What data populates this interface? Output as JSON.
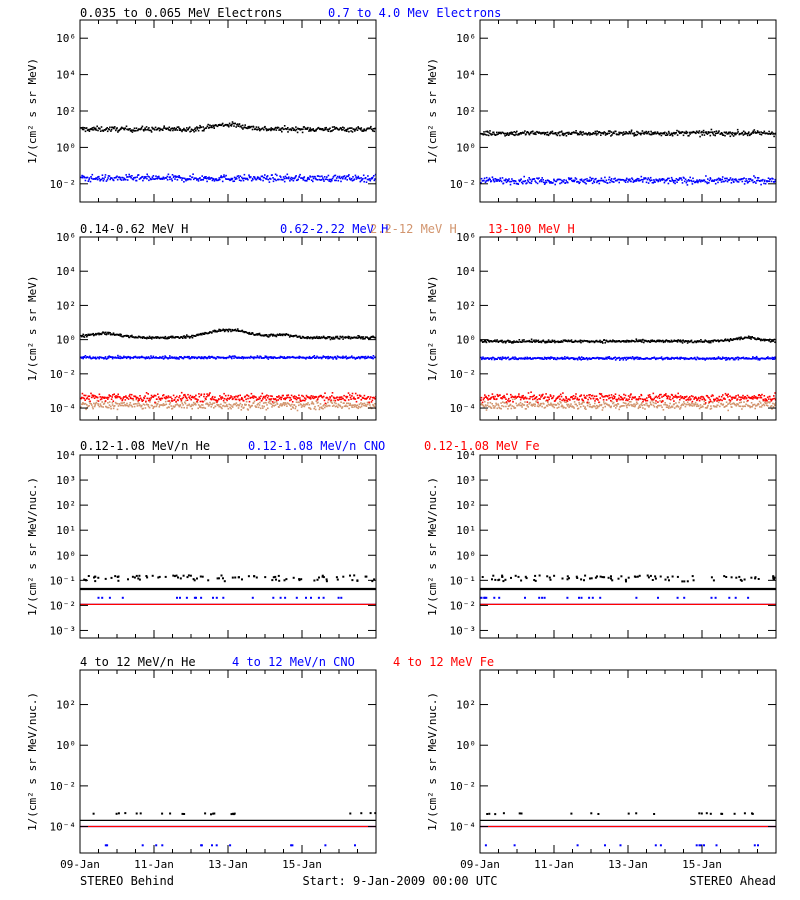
{
  "page": {
    "footer_left": "STEREO Behind",
    "footer_center": "Start:  9-Jan-2009 00:00 UTC",
    "footer_right": "STEREO Ahead"
  },
  "x_ticks": [
    "09-Jan",
    "11-Jan",
    "13-Jan",
    "15-Jan"
  ],
  "rows": [
    {
      "titles": [
        {
          "text": "0.035 to 0.065 MeV Electrons",
          "color": "#000000"
        },
        {
          "text": "0.7 to 4.0 Mev Electrons",
          "color": "#0000ff"
        }
      ],
      "ylabel": "1/(cm² s sr MeV)",
      "yticks": [
        {
          "exp": 6,
          "label": "10⁶"
        },
        {
          "exp": 4,
          "label": "10⁴"
        },
        {
          "exp": 2,
          "label": "10²"
        },
        {
          "exp": 0,
          "label": "10⁰"
        },
        {
          "exp": -2,
          "label": "10⁻²"
        }
      ]
    },
    {
      "titles": [
        {
          "text": "0.14-0.62 MeV H",
          "color": "#000000"
        },
        {
          "text": "0.62-2.22 MeV H",
          "color": "#0000ff"
        },
        {
          "text": "2.2-12 MeV H",
          "color": "#d2956e"
        },
        {
          "text": "13-100 MeV H",
          "color": "#ff0000"
        }
      ],
      "ylabel": "1/(cm² s sr MeV)",
      "yticks": [
        {
          "exp": 6,
          "label": "10⁶"
        },
        {
          "exp": 4,
          "label": "10⁴"
        },
        {
          "exp": 2,
          "label": "10²"
        },
        {
          "exp": 0,
          "label": "10⁰"
        },
        {
          "exp": -2,
          "label": "10⁻²"
        },
        {
          "exp": -4,
          "label": "10⁻⁴"
        }
      ]
    },
    {
      "titles": [
        {
          "text": "0.12-1.08 MeV/n He",
          "color": "#000000"
        },
        {
          "text": "0.12-1.08 MeV/n CNO",
          "color": "#0000ff"
        },
        {
          "text": "0.12-1.08 MeV Fe",
          "color": "#ff0000"
        }
      ],
      "ylabel": "1/(cm² s sr MeV/nuc.)",
      "yticks": [
        {
          "exp": 4,
          "label": "10⁴"
        },
        {
          "exp": 3,
          "label": "10³"
        },
        {
          "exp": 2,
          "label": "10²"
        },
        {
          "exp": 1,
          "label": "10¹"
        },
        {
          "exp": 0,
          "label": "10⁰"
        },
        {
          "exp": -1,
          "label": "10⁻¹"
        },
        {
          "exp": -2,
          "label": "10⁻²"
        },
        {
          "exp": -3,
          "label": "10⁻³"
        }
      ]
    },
    {
      "titles": [
        {
          "text": "4 to 12 MeV/n He",
          "color": "#000000"
        },
        {
          "text": "4 to 12 MeV/n CNO",
          "color": "#0000ff"
        },
        {
          "text": "4 to 12 MeV Fe",
          "color": "#ff0000"
        }
      ],
      "ylabel": "1/(cm² s sr MeV/nuc.)",
      "yticks": [
        {
          "exp": 2,
          "label": "10²"
        },
        {
          "exp": 0,
          "label": "10⁰"
        },
        {
          "exp": -2,
          "label": "10⁻²"
        },
        {
          "exp": -4,
          "label": "10⁻⁴"
        }
      ]
    }
  ],
  "chart_data": [
    {
      "type": "scatter",
      "spacecraft": "STEREO Behind",
      "row": 1,
      "xlim": [
        "2009-01-09",
        "2009-01-17"
      ],
      "yscale": "log",
      "ylim": [
        0.001,
        10000000
      ],
      "series": [
        {
          "name": "0.035 to 0.065 MeV Electrons",
          "color": "#000000",
          "level": 10,
          "spread": 0.07,
          "bumps": [
            {
              "x": 4.0,
              "h": 0.25,
              "w": 0.6
            }
          ]
        },
        {
          "name": "0.7 to 4.0 Mev Electrons",
          "color": "#0000ff",
          "level": 0.02,
          "spread": 0.09,
          "bumps": []
        }
      ]
    },
    {
      "type": "scatter",
      "spacecraft": "STEREO Ahead",
      "row": 1,
      "xlim": [
        "2009-01-09",
        "2009-01-17"
      ],
      "yscale": "log",
      "ylim": [
        0.001,
        10000000
      ],
      "series": [
        {
          "name": "0.035 to 0.065 MeV Electrons",
          "color": "#000000",
          "level": 6,
          "spread": 0.07,
          "bumps": []
        },
        {
          "name": "0.7 to 4.0 Mev Electrons",
          "color": "#0000ff",
          "level": 0.015,
          "spread": 0.09,
          "bumps": []
        }
      ]
    },
    {
      "type": "scatter",
      "spacecraft": "STEREO Behind",
      "row": 2,
      "xlim": [
        "2009-01-09",
        "2009-01-17"
      ],
      "yscale": "log",
      "ylim": [
        2e-05,
        1000000
      ],
      "series": [
        {
          "name": "0.14-0.62 MeV H",
          "color": "#000000",
          "level": 1.3,
          "spread": 0.04,
          "bumps": [
            {
              "x": 0.6,
              "h": 0.25,
              "w": 0.6
            },
            {
              "x": 4.0,
              "h": 0.45,
              "w": 0.8
            },
            {
              "x": 5.5,
              "h": 0.15,
              "w": 0.4
            }
          ]
        },
        {
          "name": "0.62-2.22 MeV H",
          "color": "#0000ff",
          "level": 0.09,
          "spread": 0.04,
          "bumps": []
        },
        {
          "name": "2.2-12 MeV H",
          "color": "#d2956e",
          "level": 0.00015,
          "spread": 0.12,
          "bumps": []
        },
        {
          "name": "13-100 MeV H",
          "color": "#ff0000",
          "level": 0.0004,
          "spread": 0.12,
          "bumps": []
        }
      ]
    },
    {
      "type": "scatter",
      "spacecraft": "STEREO Ahead",
      "row": 2,
      "xlim": [
        "2009-01-09",
        "2009-01-17"
      ],
      "yscale": "log",
      "ylim": [
        2e-05,
        1000000
      ],
      "series": [
        {
          "name": "0.14-0.62 MeV H",
          "color": "#000000",
          "level": 0.8,
          "spread": 0.04,
          "bumps": [
            {
              "x": 7.2,
              "h": 0.2,
              "w": 0.5
            }
          ]
        },
        {
          "name": "0.62-2.22 MeV H",
          "color": "#0000ff",
          "level": 0.08,
          "spread": 0.04,
          "bumps": []
        },
        {
          "name": "2.2-12 MeV H",
          "color": "#d2956e",
          "level": 0.00015,
          "spread": 0.12,
          "bumps": []
        },
        {
          "name": "13-100 MeV H",
          "color": "#ff0000",
          "level": 0.0004,
          "spread": 0.12,
          "bumps": []
        }
      ]
    },
    {
      "type": "scatter",
      "spacecraft": "STEREO Behind",
      "row": 3,
      "xlim": [
        "2009-01-09",
        "2009-01-17"
      ],
      "yscale": "log",
      "ylim": [
        0.0005,
        10000
      ],
      "series": [
        {
          "name": "0.12-1.08 MeV/n He",
          "color": "#000000",
          "level": 0.045,
          "spread": 0.0,
          "bumps": []
        },
        {
          "name": "0.12-1.08 MeV/n CNO",
          "color": "#0000ff",
          "level": 0.011,
          "spread": 0.0,
          "bumps": []
        },
        {
          "name": "0.12-1.08 MeV Fe",
          "color": "#ff0000",
          "level": 0.011,
          "spread": 0.0,
          "bumps": []
        }
      ]
    },
    {
      "type": "scatter",
      "spacecraft": "STEREO Ahead",
      "row": 3,
      "xlim": [
        "2009-01-09",
        "2009-01-17"
      ],
      "yscale": "log",
      "ylim": [
        0.0005,
        10000
      ],
      "series": [
        {
          "name": "0.12-1.08 MeV/n He",
          "color": "#000000",
          "level": 0.045,
          "spread": 0.0,
          "bumps": []
        },
        {
          "name": "0.12-1.08 MeV/n CNO",
          "color": "#0000ff",
          "level": 0.011,
          "spread": 0.0,
          "bumps": []
        },
        {
          "name": "0.12-1.08 MeV Fe",
          "color": "#ff0000",
          "level": 0.011,
          "spread": 0.0,
          "bumps": []
        }
      ]
    },
    {
      "type": "scatter",
      "spacecraft": "STEREO Behind",
      "row": 4,
      "xlim": [
        "2009-01-09",
        "2009-01-17"
      ],
      "yscale": "log",
      "ylim": [
        5e-06,
        5000
      ],
      "series": [
        {
          "name": "4 to 12 MeV/n He",
          "color": "#000000",
          "level": 0.0002,
          "spread": 0.0,
          "bumps": []
        },
        {
          "name": "4 to 12 MeV/n CNO",
          "color": "#0000ff",
          "level": 0.0001,
          "spread": 0.0,
          "bumps": []
        },
        {
          "name": "4 to 12 MeV Fe",
          "color": "#ff0000",
          "level": 0.0001,
          "spread": 0.0,
          "bumps": []
        }
      ]
    },
    {
      "type": "scatter",
      "spacecraft": "STEREO Ahead",
      "row": 4,
      "xlim": [
        "2009-01-09",
        "2009-01-17"
      ],
      "yscale": "log",
      "ylim": [
        5e-06,
        5000
      ],
      "series": [
        {
          "name": "4 to 12 MeV/n He",
          "color": "#000000",
          "level": 0.0002,
          "spread": 0.0,
          "bumps": []
        },
        {
          "name": "4 to 12 MeV/n CNO",
          "color": "#0000ff",
          "level": 0.0001,
          "spread": 0.0,
          "bumps": []
        },
        {
          "name": "4 to 12 MeV Fe",
          "color": "#ff0000",
          "level": 0.0001,
          "spread": 0.0,
          "bumps": []
        }
      ]
    }
  ]
}
